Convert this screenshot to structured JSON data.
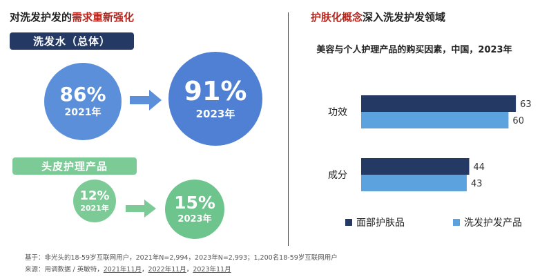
{
  "left": {
    "heading_prefix": "对洗发护发的",
    "heading_emph": "需求重新强化",
    "group1": {
      "label": "洗发水（总体）",
      "v2021": "86%",
      "y2021": "2021年",
      "v2023": "91%",
      "y2023": "2023年"
    },
    "group2": {
      "label": "头皮护理产品",
      "v2021": "12%",
      "y2021": "2021年",
      "v2023": "15%",
      "y2023": "2023年"
    }
  },
  "right": {
    "heading_emph": "护肤化概念",
    "heading_rest": "深入洗发护发领域"
  },
  "footnote": {
    "base": "基于：非光头的18-59岁互联网用户，2021年N=2,994，2023年N=2,993；1,200名18-59岁互联网用户",
    "source_prefix": "来源：用调数据 / 英敏特，",
    "dates": [
      "2021年11月",
      "2022年11月",
      "2023年11月"
    ],
    "sep": "，"
  },
  "colors": {
    "navy": "#243a64",
    "blue": "#5b8fd9",
    "green": "#7ccb97",
    "light_blue": "#5ba2de",
    "red": "#b3261e"
  },
  "chart_data": {
    "type": "bar",
    "orientation": "horizontal",
    "title": "美容与个人护理产品的购买因素，中国，2023年",
    "categories": [
      "功效",
      "成分"
    ],
    "series": [
      {
        "name": "面部护肤品",
        "values": [
          63,
          44
        ],
        "color": "#243a64"
      },
      {
        "name": "洗发护发产品",
        "values": [
          60,
          43
        ],
        "color": "#5ba2de"
      }
    ],
    "xlim": [
      0,
      70
    ],
    "legend": "bottom",
    "grid": false
  }
}
